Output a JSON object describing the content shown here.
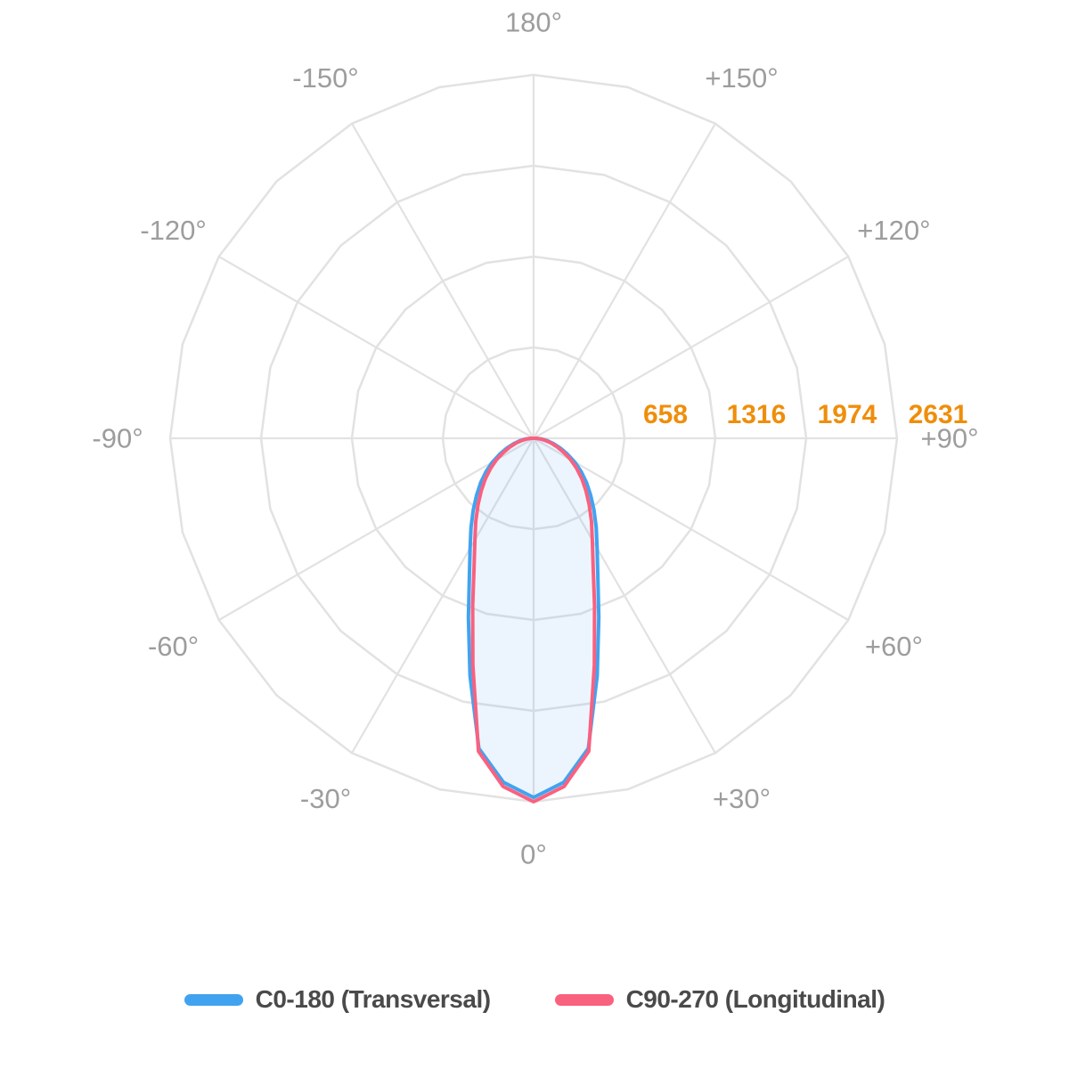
{
  "chart_data": {
    "type": "polar",
    "subtype": "photometric-light-distribution",
    "title": "",
    "units_implied": "cd",
    "scale_max": 2631,
    "ring_values": [
      658,
      1316,
      1974,
      2631
    ],
    "angle_labels": [
      {
        "angle": 0,
        "label": "0°"
      },
      {
        "angle": 30,
        "label": "+30°"
      },
      {
        "angle": 60,
        "label": "+60°"
      },
      {
        "angle": 90,
        "label": "+90°"
      },
      {
        "angle": 120,
        "label": "+120°"
      },
      {
        "angle": 150,
        "label": "+150°"
      },
      {
        "angle": 180,
        "label": "180°"
      },
      {
        "angle": -150,
        "label": "-150°"
      },
      {
        "angle": -120,
        "label": "-120°"
      },
      {
        "angle": -90,
        "label": "-90°"
      },
      {
        "angle": -60,
        "label": "-60°"
      },
      {
        "angle": -30,
        "label": "-30°"
      }
    ],
    "gamma_angles_deg": [
      0,
      5,
      10,
      15,
      20,
      25,
      30,
      35,
      40,
      45,
      50,
      55,
      60,
      65,
      70,
      75,
      80,
      85,
      90
    ],
    "series": [
      {
        "name": "C0-180 (Transversal)",
        "color": "#41A3F0",
        "fill": "rgba(65,160,240,0.10)",
        "values": [
          2600,
          2500,
          2280,
          1780,
          1380,
          1100,
          920,
          790,
          680,
          585,
          500,
          420,
          345,
          270,
          205,
          148,
          98,
          55,
          18
        ]
      },
      {
        "name": "C90-270 (Longitudinal)",
        "color": "#F9617F",
        "fill": "none",
        "values": [
          2631,
          2530,
          2300,
          1700,
          1290,
          1020,
          850,
          730,
          625,
          535,
          455,
          380,
          310,
          240,
          180,
          128,
          84,
          46,
          15
        ]
      }
    ],
    "grid": {
      "color": "#E2E2E2",
      "rings": 4,
      "spoke_step_deg": 30,
      "ring_vertex_step_deg": 15
    },
    "angle_label_color": "#9D9D9D",
    "ring_label_color": "#EF8E0B",
    "legend_position": "bottom"
  },
  "legend": {
    "items": [
      {
        "label": "C0-180 (Transversal)",
        "color": "#41A3F0"
      },
      {
        "label": "C90-270 (Longitudinal)",
        "color": "#F9617F"
      }
    ]
  }
}
